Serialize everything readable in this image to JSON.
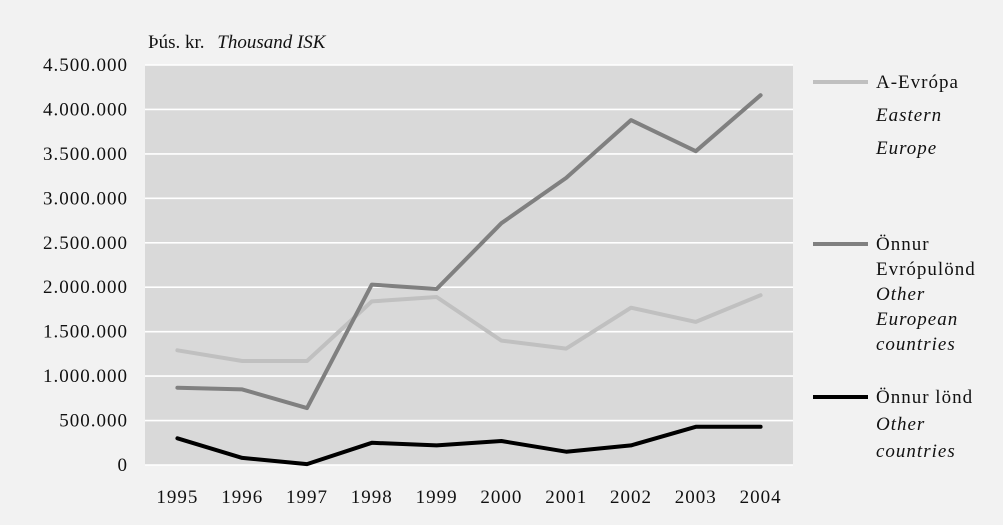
{
  "chart_data": {
    "type": "line",
    "unit_label": {
      "is": "Þús. kr.",
      "en": "Thousand ISK"
    },
    "x": [
      "1995",
      "1996",
      "1997",
      "1998",
      "1999",
      "2000",
      "2001",
      "2002",
      "2003",
      "2004"
    ],
    "ylim": [
      0,
      4500000
    ],
    "yticks": [
      "0",
      "500.000",
      "1.000.000",
      "1.500.000",
      "2.000.000",
      "2.500.000",
      "3.000.000",
      "3.500.000",
      "4.000.000",
      "4.500.000"
    ],
    "ytick_values": [
      0,
      500000,
      1000000,
      1500000,
      2000000,
      2500000,
      3000000,
      3500000,
      4000000,
      4500000
    ],
    "grid": true,
    "legend_position": "right",
    "series": [
      {
        "name_is": "A-Evrópa",
        "name_en": [
          "Eastern",
          "Europe"
        ],
        "color": "#c0c0c0",
        "values": [
          1290000,
          1170000,
          1170000,
          1840000,
          1890000,
          1400000,
          1310000,
          1770000,
          1610000,
          1910000
        ]
      },
      {
        "name_is": [
          "Önnur",
          "Evrópulönd"
        ],
        "name_en": [
          "Other",
          "European",
          "countries"
        ],
        "color": "#808080",
        "values": [
          870000,
          850000,
          640000,
          2030000,
          1980000,
          2720000,
          3230000,
          3880000,
          3530000,
          4160000
        ]
      },
      {
        "name_is": "Önnur lönd",
        "name_en": [
          "Other",
          "countries"
        ],
        "color": "#000000",
        "values": [
          300000,
          80000,
          10000,
          250000,
          220000,
          270000,
          150000,
          220000,
          430000,
          430000
        ]
      }
    ]
  }
}
